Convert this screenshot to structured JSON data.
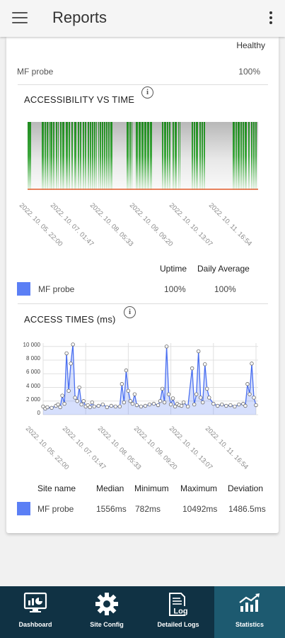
{
  "appbar": {
    "title": "Reports"
  },
  "summary": {
    "status": "Healthy",
    "probe_name": "MF probe",
    "probe_value": "100%"
  },
  "accessibility": {
    "title": "ACCESSIBILITY VS TIME",
    "x_labels": [
      "2022. 10. 05. 22:00",
      "2022. 10. 07. 01:47",
      "2022. 10. 08. 05:33",
      "2022. 10. 09. 09:20",
      "2022. 10. 10. 13:07",
      "2022. 10. 11. 16:54"
    ],
    "legend": {
      "col_uptime": "Uptime",
      "col_daily": "Daily Average",
      "name": "MF probe",
      "uptime": "100%",
      "daily": "100%",
      "color": "#5b7ff5"
    }
  },
  "access_times": {
    "title": "ACCESS TIMES (ms)",
    "y_labels": [
      "10 000",
      "8 000",
      "6 000",
      "4 000",
      "2 000",
      "0"
    ],
    "x_labels": [
      "2022. 10. 05. 22:00",
      "2022. 10. 07. 01:47",
      "2022. 10. 08. 05:33",
      "2022. 10. 09. 09:20",
      "2022. 10. 10. 13:07",
      "2022. 10. 11. 16:54"
    ],
    "table": {
      "headers": [
        "Site name",
        "Median",
        "Minimum",
        "Maximum",
        "Deviation"
      ],
      "row": {
        "name": "MF probe",
        "median": "1556ms",
        "minimum": "782ms",
        "maximum": "10492ms",
        "deviation": "1486.5ms"
      },
      "color": "#5b7ff5"
    }
  },
  "chart_data": [
    {
      "type": "bar",
      "title": "ACCESSIBILITY VS TIME",
      "x_tick_labels": [
        "2022. 10. 05. 22:00",
        "2022. 10. 07. 01:47",
        "2022. 10. 08. 05:33",
        "2022. 10. 09. 09:20",
        "2022. 10. 10. 13:07",
        "2022. 10. 11. 16:54"
      ],
      "series": [
        {
          "values": [
            100,
            100,
            100,
            100,
            100,
            100
          ]
        }
      ],
      "legend": "bottom"
    },
    {
      "type": "line",
      "title": "ACCESS TIMES (ms)",
      "ylim": [
        0,
        10500
      ],
      "y_ticks": [
        0,
        2000,
        4000,
        6000,
        8000,
        10000
      ],
      "x_tick_labels": [
        "2022. 10. 05. 22:00",
        "2022. 10. 07. 01:47",
        "2022. 10. 08. 05:33",
        "2022. 10. 09. 09:20",
        "2022. 10. 10. 13:07",
        "2022. 10. 11. 16:54"
      ],
      "x": [
        0,
        0.05,
        0.1,
        0.2,
        0.3,
        0.35,
        0.4,
        0.45,
        0.5,
        0.55,
        0.6,
        0.65,
        0.7,
        0.75,
        0.8,
        0.85,
        0.9,
        0.95,
        1.0,
        1.05,
        1.1,
        1.15,
        1.2,
        1.3,
        1.4,
        1.5,
        1.6,
        1.7,
        1.8,
        1.85,
        1.9,
        1.95,
        2.0,
        2.05,
        2.1,
        2.15,
        2.2,
        2.3,
        2.4,
        2.5,
        2.6,
        2.7,
        2.75,
        2.8,
        2.85,
        2.9,
        2.95,
        3.0,
        3.05,
        3.1,
        3.15,
        3.2,
        3.25,
        3.3,
        3.4,
        3.5,
        3.55,
        3.6,
        3.65,
        3.7,
        3.75,
        3.8,
        3.85,
        3.9,
        4.0,
        4.1,
        4.2,
        4.3,
        4.4,
        4.5,
        4.6,
        4.7,
        4.75,
        4.8,
        4.85,
        4.9,
        4.95,
        5.0
      ],
      "y": [
        1200,
        900,
        1100,
        1000,
        1300,
        1500,
        1100,
        2800,
        1600,
        9000,
        3500,
        7500,
        10300,
        2500,
        2000,
        4000,
        1500,
        2000,
        1200,
        1400,
        1100,
        1800,
        1200,
        1300,
        1500,
        1100,
        1300,
        1200,
        1200,
        4500,
        1800,
        6500,
        3500,
        2000,
        1600,
        3000,
        1400,
        1200,
        1300,
        1500,
        1600,
        1400,
        2000,
        3800,
        1800,
        10000,
        3000,
        1500,
        2400,
        1200,
        1600,
        1400,
        1300,
        1800,
        1200,
        6800,
        1500,
        3000,
        9300,
        2500,
        1800,
        7400,
        3800,
        2500,
        1600,
        1300,
        1500,
        1300,
        1400,
        1200,
        1500,
        1600,
        1300,
        4500,
        3000,
        7500,
        2500,
        1400
      ],
      "legend": "bottom"
    }
  ]
}
